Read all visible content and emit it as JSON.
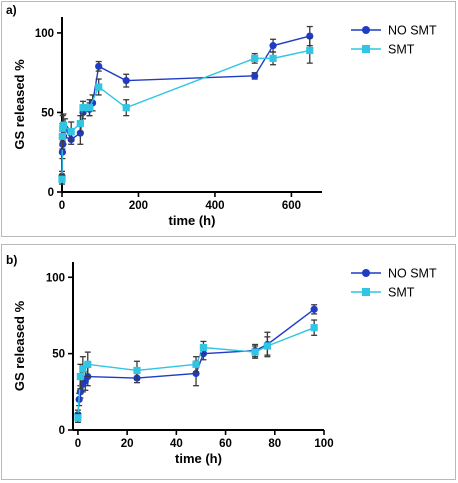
{
  "colors": {
    "no_smt": "#1f3cc4",
    "smt": "#2fc5e3",
    "error_bar": "#3a3a3a"
  },
  "chart_data": [
    {
      "type": "line",
      "panel_label": "a)",
      "title": "",
      "xlabel": "time (h)",
      "ylabel": "GS released %",
      "xlim": [
        0,
        680
      ],
      "ylim": [
        0,
        110
      ],
      "xticks": [
        0,
        200,
        400,
        600
      ],
      "yticks": [
        0,
        50,
        100
      ],
      "legend_position": "top-right",
      "series": [
        {
          "name": "NO SMT",
          "marker": "circle",
          "points": [
            {
              "x": 0,
              "y": 10,
              "err": 3
            },
            {
              "x": 1,
              "y": 25,
              "err": 4
            },
            {
              "x": 2,
              "y": 30,
              "err": 5
            },
            {
              "x": 4,
              "y": 35,
              "err": 5
            },
            {
              "x": 8,
              "y": 40,
              "err": 6
            },
            {
              "x": 24,
              "y": 33,
              "err": 3
            },
            {
              "x": 48,
              "y": 37,
              "err": 7
            },
            {
              "x": 55,
              "y": 50,
              "err": 4
            },
            {
              "x": 72,
              "y": 52,
              "err": 4
            },
            {
              "x": 80,
              "y": 56,
              "err": 5
            },
            {
              "x": 96,
              "y": 79,
              "err": 3
            },
            {
              "x": 168,
              "y": 70,
              "err": 4
            },
            {
              "x": 504,
              "y": 73,
              "err": 2
            },
            {
              "x": 552,
              "y": 92,
              "err": 4
            },
            {
              "x": 648,
              "y": 98,
              "err": 6
            }
          ]
        },
        {
          "name": "SMT",
          "marker": "square",
          "points": [
            {
              "x": 0,
              "y": 8,
              "err": 3
            },
            {
              "x": 1,
              "y": 35,
              "err": 8
            },
            {
              "x": 2,
              "y": 40,
              "err": 8
            },
            {
              "x": 4,
              "y": 42,
              "err": 7
            },
            {
              "x": 24,
              "y": 38,
              "err": 6
            },
            {
              "x": 48,
              "y": 43,
              "err": 5
            },
            {
              "x": 55,
              "y": 53,
              "err": 4
            },
            {
              "x": 72,
              "y": 53,
              "err": 5
            },
            {
              "x": 96,
              "y": 66,
              "err": 5
            },
            {
              "x": 168,
              "y": 53,
              "err": 5
            },
            {
              "x": 504,
              "y": 84,
              "err": 3
            },
            {
              "x": 552,
              "y": 84,
              "err": 4
            },
            {
              "x": 648,
              "y": 89,
              "err": 8
            }
          ]
        }
      ]
    },
    {
      "type": "line",
      "panel_label": "b)",
      "title": "",
      "xlabel": "time (h)",
      "ylabel": "GS released %",
      "xlim": [
        -2,
        100
      ],
      "ylim": [
        0,
        110
      ],
      "xticks": [
        0,
        20,
        40,
        60,
        80,
        100
      ],
      "yticks": [
        0,
        50,
        100
      ],
      "legend_position": "top-right",
      "series": [
        {
          "name": "NO SMT",
          "marker": "circle",
          "points": [
            {
              "x": 0,
              "y": 10,
              "err": 3
            },
            {
              "x": 0.5,
              "y": 20,
              "err": 4
            },
            {
              "x": 1,
              "y": 25,
              "err": 4
            },
            {
              "x": 2,
              "y": 30,
              "err": 5
            },
            {
              "x": 3,
              "y": 32,
              "err": 6
            },
            {
              "x": 4,
              "y": 35,
              "err": 6
            },
            {
              "x": 24,
              "y": 34,
              "err": 3
            },
            {
              "x": 48,
              "y": 37,
              "err": 8
            },
            {
              "x": 51,
              "y": 50,
              "err": 4
            },
            {
              "x": 72,
              "y": 52,
              "err": 4
            },
            {
              "x": 77,
              "y": 56,
              "err": 8
            },
            {
              "x": 96,
              "y": 79,
              "err": 3
            }
          ]
        },
        {
          "name": "SMT",
          "marker": "square",
          "points": [
            {
              "x": 0,
              "y": 8,
              "err": 3
            },
            {
              "x": 1,
              "y": 35,
              "err": 8
            },
            {
              "x": 2,
              "y": 40,
              "err": 8
            },
            {
              "x": 4,
              "y": 43,
              "err": 8
            },
            {
              "x": 24,
              "y": 39,
              "err": 6
            },
            {
              "x": 48,
              "y": 43,
              "err": 5
            },
            {
              "x": 51,
              "y": 54,
              "err": 4
            },
            {
              "x": 72,
              "y": 51,
              "err": 4
            },
            {
              "x": 77,
              "y": 55,
              "err": 6
            },
            {
              "x": 96,
              "y": 67,
              "err": 5
            }
          ]
        }
      ]
    }
  ]
}
